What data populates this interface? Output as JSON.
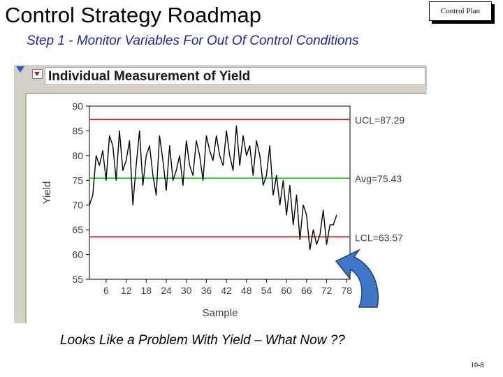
{
  "slide": {
    "title": "Control Strategy Roadmap",
    "badge": "Control Plan",
    "subtitle": "Step 1 - Monitor Variables For Out Of Control Conditions",
    "bottom_text": "Looks Like a Problem With Yield – What Now ??",
    "page_number": "10-8"
  },
  "panel": {
    "title": "Individual Measurement of Yield"
  },
  "colors": {
    "ucl": "#cc2020",
    "lcl": "#cc2020",
    "avg": "#22bb22",
    "series": "#000000",
    "subtitle": "#1a24b8",
    "arrow": "#3f78c8"
  },
  "chart_data": {
    "type": "line",
    "xlabel": "Sample",
    "ylabel": "Yield",
    "ylim": [
      55,
      90
    ],
    "xlim": [
      1,
      79
    ],
    "yticks": [
      55,
      60,
      65,
      70,
      75,
      80,
      85,
      90
    ],
    "xticks": [
      6,
      12,
      18,
      24,
      30,
      36,
      42,
      48,
      54,
      60,
      66,
      72,
      78
    ],
    "grid": false,
    "control_lines": [
      {
        "label": "UCL=87.29",
        "value": 87.29,
        "color": "#cc2020"
      },
      {
        "label": "Avg=75.43",
        "value": 75.43,
        "color": "#22bb22"
      },
      {
        "label": "LCL=63.57",
        "value": 63.57,
        "color": "#cc2020"
      }
    ],
    "series": [
      {
        "x": [
          1,
          2,
          3,
          4,
          5,
          6,
          7,
          8,
          9,
          10,
          11,
          12,
          13,
          14,
          15,
          16,
          17,
          18,
          19,
          20,
          21,
          22,
          23,
          24,
          25,
          26,
          27,
          28,
          29,
          30,
          31,
          32,
          33,
          34,
          35,
          36,
          37,
          38,
          39,
          40,
          41,
          42,
          43,
          44,
          45,
          46,
          47,
          48,
          49,
          50,
          51,
          52,
          53,
          54,
          55,
          56,
          57,
          58,
          59,
          60,
          61,
          62,
          63,
          64,
          65,
          66,
          67,
          68,
          69,
          70,
          71,
          72,
          73,
          74,
          75
        ],
        "values": [
          70,
          72,
          80,
          78,
          81,
          75,
          84,
          82,
          75,
          85,
          77,
          79,
          83,
          70,
          78,
          85,
          74,
          80,
          82,
          76,
          72,
          84,
          79,
          73,
          82,
          75,
          77,
          80,
          74,
          83,
          78,
          76,
          83,
          80,
          75,
          84,
          81,
          79,
          84,
          80,
          78,
          85,
          80,
          77,
          86,
          78,
          84,
          80,
          82,
          76,
          83,
          80,
          74,
          76,
          82,
          72,
          76,
          70,
          75,
          68,
          74,
          66,
          72,
          63,
          70,
          68,
          61,
          65,
          62,
          64,
          69,
          62,
          66,
          66,
          68
        ]
      }
    ]
  }
}
